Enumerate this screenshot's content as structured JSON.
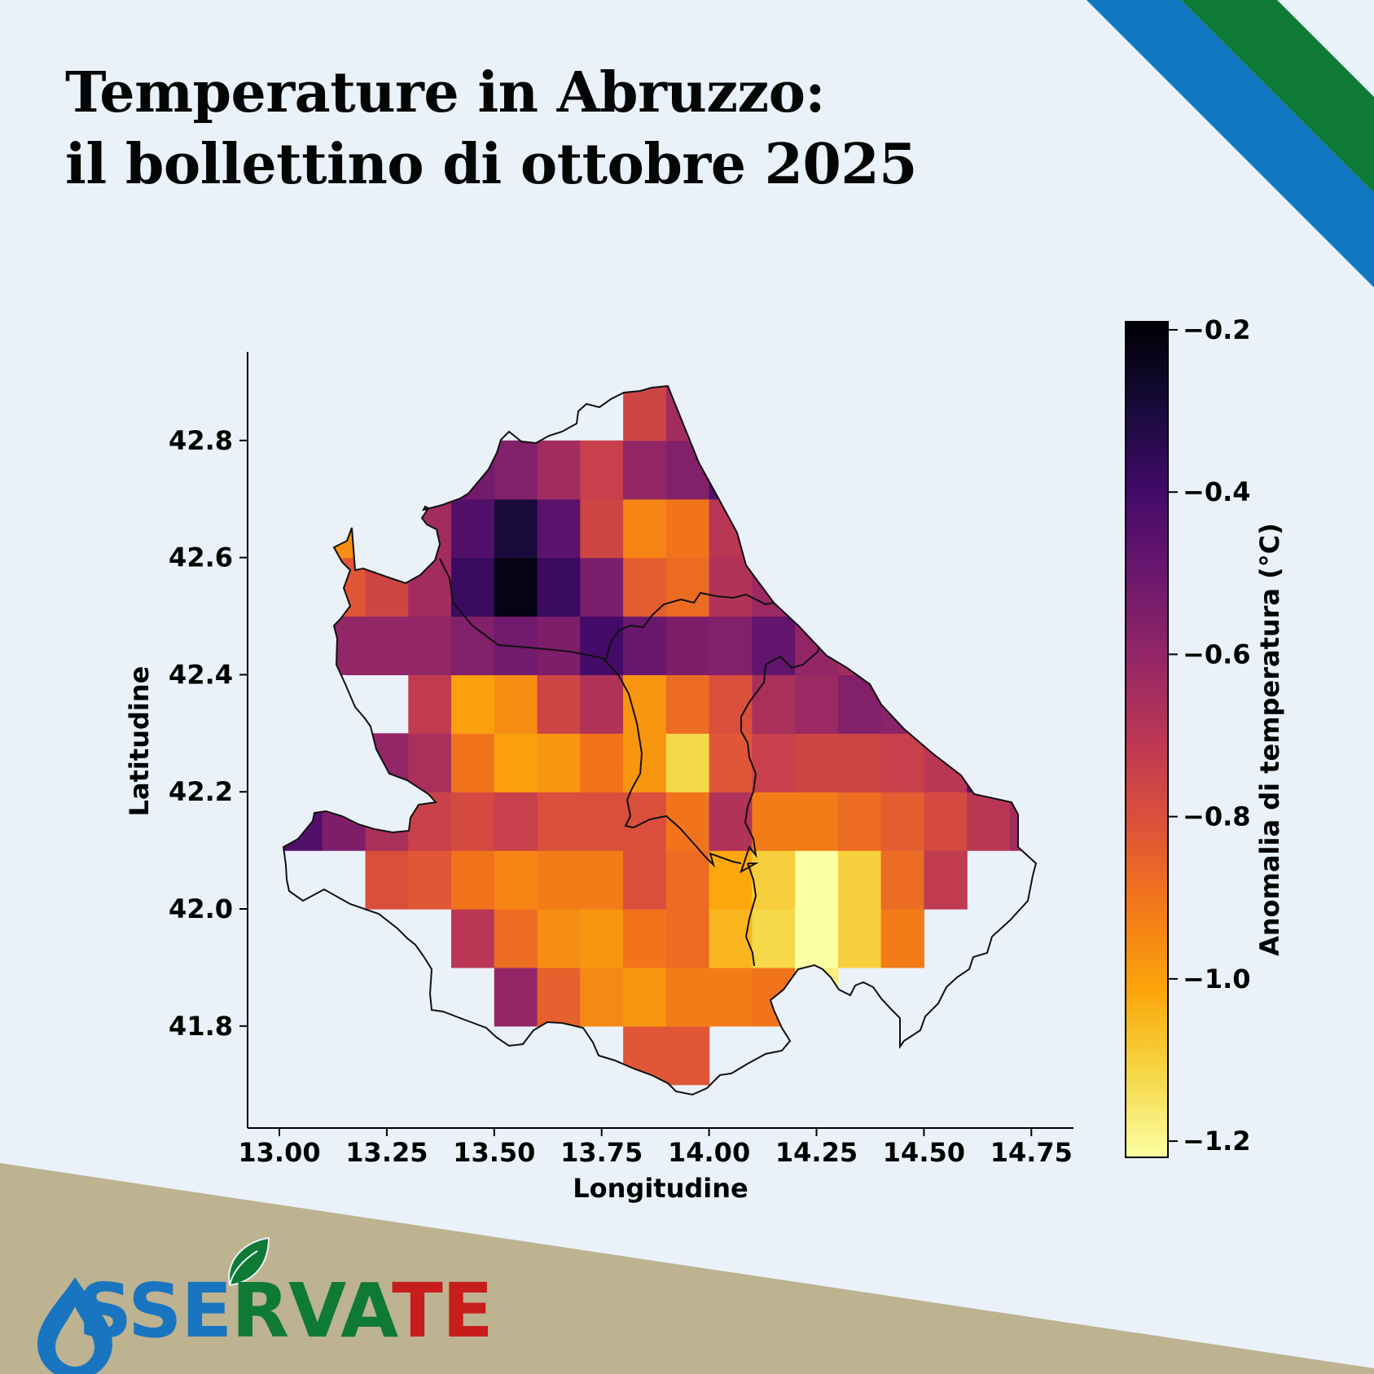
{
  "title": {
    "line1": "Temperature in Abruzzo:",
    "line2": "il bollettino di ottobre 2025"
  },
  "logo": {
    "part_blue": "SSE",
    "part_green": "RVA",
    "part_red": "TE",
    "drop_icon": "water-drop-icon",
    "leaf_icon": "leaf-icon",
    "text": "OSSERVATE"
  },
  "colors": {
    "background": "#eaf1f9",
    "stripe_blue": "#0f78c0",
    "stripe_green": "#0f7a35",
    "band_tan": "#bdb390",
    "logo_blue": "#1a75c0",
    "logo_green": "#0f7a35",
    "logo_red": "#c71d1d"
  },
  "chart_data": {
    "type": "heatmap",
    "colormap": "inferno",
    "xlabel": "Longitudine",
    "ylabel": "Latitudine",
    "xlim": [
      12.95,
      14.85
    ],
    "ylim": [
      41.67,
      42.96
    ],
    "xticks": [
      13.0,
      13.25,
      13.5,
      13.75,
      14.0,
      14.25,
      14.5,
      14.75
    ],
    "xtick_labels": [
      "13.00",
      "13.25",
      "13.50",
      "13.75",
      "14.00",
      "14.25",
      "14.50",
      "14.75"
    ],
    "yticks": [
      41.8,
      42.0,
      42.2,
      42.4,
      42.6,
      42.8
    ],
    "ytick_labels": [
      "41.8",
      "42.0",
      "42.2",
      "42.4",
      "42.6",
      "42.8"
    ],
    "colorbar": {
      "label": "Anomalia di temperatura (°C)",
      "vmin": -1.22,
      "vmax": -0.19,
      "ticks": [
        -0.2,
        -0.4,
        -0.6,
        -0.8,
        -1.0,
        -1.2
      ],
      "tick_labels": [
        "−0.2",
        "−0.4",
        "−0.6",
        "−0.8",
        "−1.0",
        "−1.2"
      ]
    },
    "grid": {
      "lon_start": 13.0,
      "lat_start": 41.7,
      "cell_size": 0.1,
      "cols": 18,
      "rows": 12
    },
    "cells": [
      [
        null,
        null,
        null,
        null,
        null,
        null,
        null,
        null,
        -0.82,
        -0.82,
        null,
        null,
        null,
        null,
        null,
        null,
        null,
        null
      ],
      [
        null,
        null,
        null,
        null,
        null,
        -0.6,
        -0.85,
        -0.95,
        -0.98,
        -0.92,
        -0.92,
        -0.9,
        -1.18,
        null,
        null,
        null,
        null,
        null
      ],
      [
        null,
        null,
        null,
        null,
        -0.7,
        -0.88,
        -0.96,
        -0.98,
        -0.9,
        -0.88,
        -1.05,
        -1.12,
        -1.22,
        -1.1,
        -0.92,
        null,
        null,
        null
      ],
      [
        null,
        null,
        -0.8,
        -0.82,
        -0.9,
        -0.94,
        -0.92,
        -0.92,
        -0.8,
        -0.88,
        -1.02,
        -1.1,
        -1.22,
        -1.1,
        -0.88,
        -0.72,
        null,
        null
      ],
      [
        -0.44,
        -0.55,
        -0.66,
        -0.75,
        -0.78,
        -0.74,
        -0.8,
        -0.8,
        -0.8,
        -0.9,
        -0.68,
        -0.92,
        -0.92,
        -0.88,
        -0.84,
        -0.78,
        -0.7,
        -0.64
      ],
      [
        -0.45,
        -0.52,
        -0.6,
        -0.66,
        -0.9,
        -1.0,
        -0.98,
        -0.9,
        -0.98,
        -1.12,
        -0.82,
        -0.74,
        -0.76,
        -0.76,
        -0.74,
        -0.7,
        -0.44,
        -0.3
      ],
      [
        null,
        null,
        null,
        -0.72,
        -1.0,
        -0.96,
        -0.76,
        -0.68,
        -0.98,
        -0.88,
        -0.8,
        -0.66,
        -0.62,
        -0.56,
        -0.58,
        -0.5,
        null,
        null
      ],
      [
        null,
        -0.6,
        -0.6,
        -0.6,
        -0.56,
        -0.52,
        -0.55,
        -0.4,
        -0.5,
        -0.55,
        -0.56,
        -0.48,
        -0.6,
        -0.64,
        -0.62,
        null,
        null,
        null
      ],
      [
        null,
        -0.82,
        -0.76,
        -0.64,
        -0.38,
        -0.22,
        -0.38,
        -0.54,
        -0.84,
        -0.88,
        -0.68,
        -0.62,
        -0.72,
        null,
        null,
        null,
        null,
        null
      ],
      [
        null,
        -0.96,
        -0.8,
        -0.64,
        -0.44,
        -0.3,
        -0.46,
        -0.76,
        -0.94,
        -0.9,
        -0.7,
        -0.7,
        null,
        null,
        null,
        null,
        null,
        null
      ],
      [
        null,
        null,
        null,
        null,
        -0.52,
        -0.56,
        -0.64,
        -0.74,
        -0.6,
        -0.56,
        -0.44,
        null,
        null,
        null,
        null,
        null,
        null,
        null
      ],
      [
        null,
        null,
        null,
        null,
        null,
        null,
        null,
        null,
        -0.76,
        -0.64,
        -0.62,
        null,
        null,
        null,
        null,
        null,
        null,
        null
      ]
    ]
  }
}
